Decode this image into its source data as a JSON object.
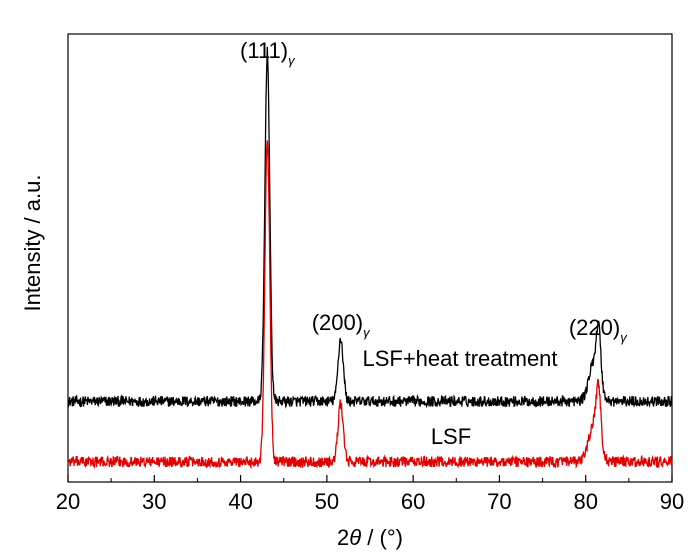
{
  "chart_data": {
    "type": "line",
    "xlabel_italic": "θ",
    "xlabel_prefix": "2",
    "xlabel_suffix": " / (°)",
    "ylabel": "Intensity / a.u.",
    "xlim": [
      20,
      90
    ],
    "xticks": [
      "20",
      "30",
      "40",
      "50",
      "60",
      "70",
      "80",
      "90"
    ],
    "yticks_shown": false,
    "grid": false,
    "peaks": [
      {
        "label": "(111)",
        "subscript": "γ",
        "x": 43.1
      },
      {
        "label": "(200)",
        "subscript": "γ",
        "x": 51.6
      },
      {
        "label": "(220)",
        "subscript": "γ",
        "x": 81.4
      }
    ],
    "series": [
      {
        "name": "LSF+heat treatment",
        "color": "#000000",
        "baseline": 0.18,
        "noise": 0.012,
        "peaks": [
          {
            "center": 43.1,
            "height": 0.78,
            "width": 0.28
          },
          {
            "center": 51.6,
            "height": 0.14,
            "width": 0.3
          },
          {
            "center": 81.0,
            "height": 0.09,
            "width": 0.6
          },
          {
            "center": 81.5,
            "height": 0.11,
            "width": 0.25
          }
        ]
      },
      {
        "name": "LSF",
        "color": "#e00000",
        "baseline": 0.045,
        "noise": 0.012,
        "peaks": [
          {
            "center": 43.1,
            "height": 0.72,
            "width": 0.28
          },
          {
            "center": 51.6,
            "height": 0.13,
            "width": 0.3
          },
          {
            "center": 81.0,
            "height": 0.09,
            "width": 0.6
          },
          {
            "center": 81.5,
            "height": 0.11,
            "width": 0.25
          }
        ]
      }
    ]
  }
}
